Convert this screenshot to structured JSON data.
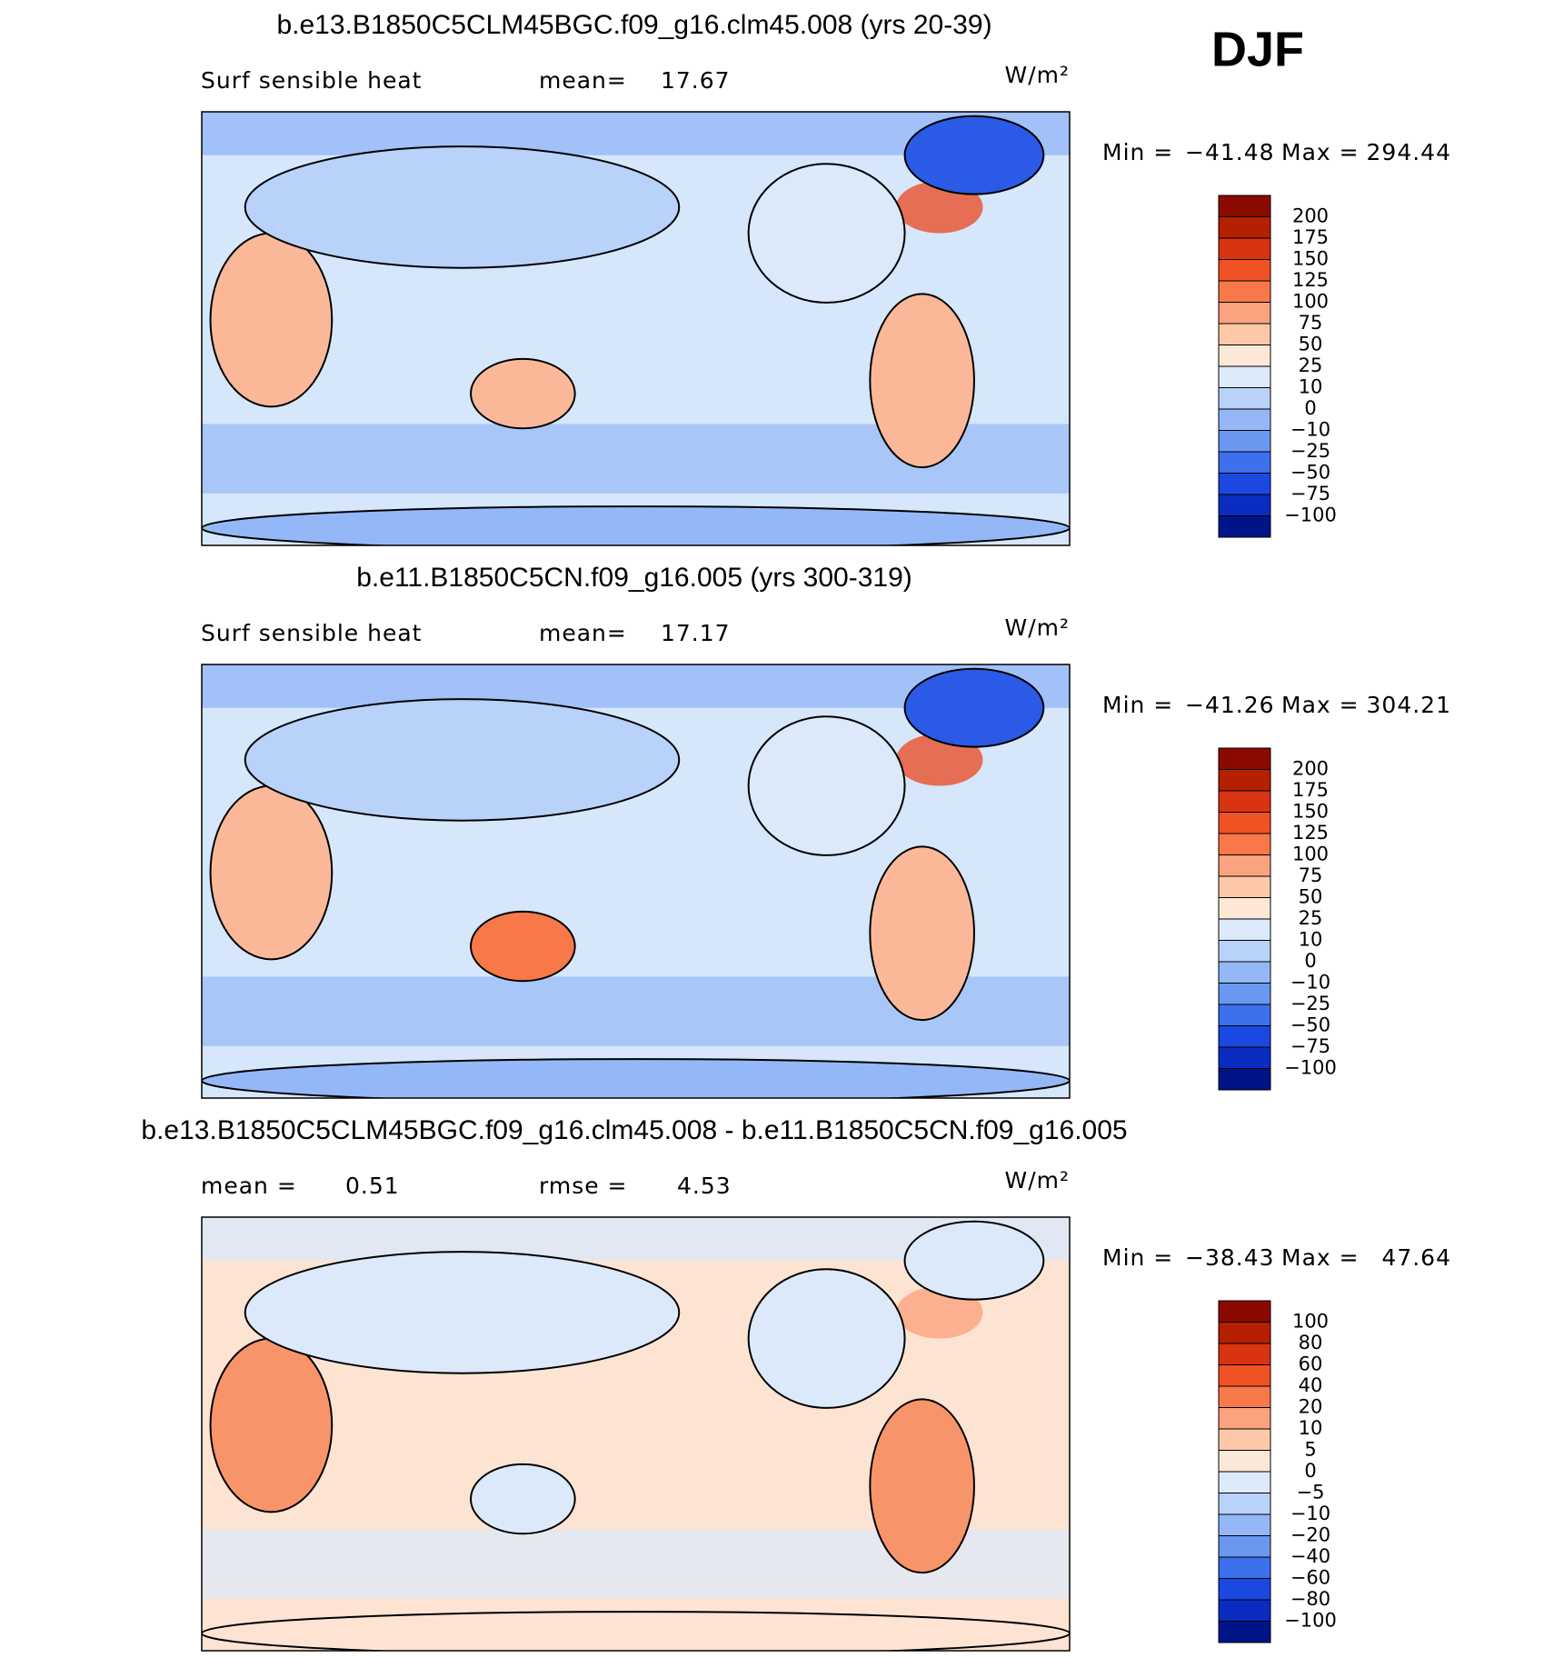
{
  "figure_label": "DJF",
  "panels": [
    {
      "title": "b.e13.B1850C5CLM45BGC.f09_g16.clm45.008 (yrs 20-39)",
      "variable": "Surf sensible heat",
      "stats": [
        {
          "label": "mean=",
          "value": "17.67"
        }
      ],
      "units": "W/m²",
      "min_label": "Min =",
      "min": "−41.48",
      "max_label": "Max =",
      "max": "294.44",
      "colorbar": {
        "labels": [
          "200",
          "175",
          "150",
          "125",
          "100",
          "75",
          "50",
          "25",
          "10",
          "0",
          "−10",
          "−25",
          "−50",
          "−75",
          "−100"
        ],
        "colors": [
          "#8b0a00",
          "#b42000",
          "#d83412",
          "#f05224",
          "#f8784a",
          "#fba27e",
          "#fdc8a8",
          "#fde8d8",
          "#dbe9fb",
          "#b8d2fa",
          "#94b8f7",
          "#6a98f0",
          "#3c70ec",
          "#1a48e0",
          "#0a2cc0",
          "#00148a"
        ]
      }
    },
    {
      "title": "b.e11.B1850C5CN.f09_g16.005 (yrs 300-319)",
      "variable": "Surf sensible heat",
      "stats": [
        {
          "label": "mean=",
          "value": "17.17"
        }
      ],
      "units": "W/m²",
      "min_label": "Min =",
      "min": "−41.26",
      "max_label": "Max =",
      "max": "304.21",
      "colorbar": {
        "labels": [
          "200",
          "175",
          "150",
          "125",
          "100",
          "75",
          "50",
          "25",
          "10",
          "0",
          "−10",
          "−25",
          "−50",
          "−75",
          "−100"
        ],
        "colors": [
          "#8b0a00",
          "#b42000",
          "#d83412",
          "#f05224",
          "#f8784a",
          "#fba27e",
          "#fdc8a8",
          "#fde8d8",
          "#dbe9fb",
          "#b8d2fa",
          "#94b8f7",
          "#6a98f0",
          "#3c70ec",
          "#1a48e0",
          "#0a2cc0",
          "#00148a"
        ]
      }
    },
    {
      "title": "b.e13.B1850C5CLM45BGC.f09_g16.clm45.008 - b.e11.B1850C5CN.f09_g16.005",
      "stats": [
        {
          "label": "mean =",
          "value": "0.51"
        },
        {
          "label": "rmse =",
          "value": "4.53"
        }
      ],
      "units": "W/m²",
      "min_label": "Min =",
      "min": "−38.43",
      "max_label": "Max =",
      "max": "47.64",
      "colorbar": {
        "labels": [
          "100",
          "80",
          "60",
          "40",
          "20",
          "10",
          "5",
          "0",
          "−5",
          "−10",
          "−20",
          "−40",
          "−60",
          "−80",
          "−100"
        ],
        "colors": [
          "#8b0a00",
          "#b42000",
          "#d83412",
          "#f05224",
          "#f8784a",
          "#fba27e",
          "#fdc8a8",
          "#fde8d8",
          "#dbe9fb",
          "#b8d2fa",
          "#94b8f7",
          "#6a98f0",
          "#3c70ec",
          "#1a48e0",
          "#0a2cc0",
          "#00148a"
        ]
      }
    }
  ]
}
